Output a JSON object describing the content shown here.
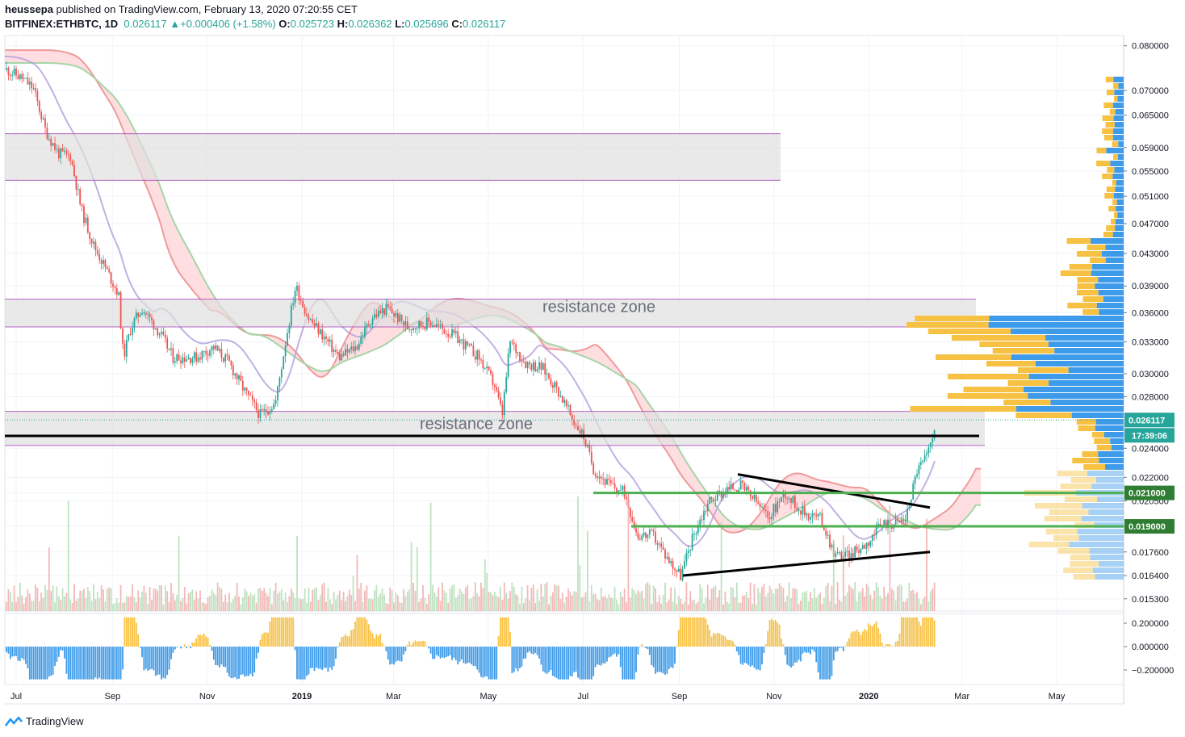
{
  "header": {
    "publisher": "heussepa",
    "published_text": "published on TradingView.com, February 13, 2020 07:20:55 CET",
    "symbol": "BITFINEX:ETHBTC, 1D",
    "last": "0.026117",
    "change": "+0.000406 (+1.58%)",
    "o_label": "O:",
    "o": "0.025723",
    "h_label": "H:",
    "h": "0.026362",
    "l_label": "L:",
    "l": "0.025696",
    "c_label": "C:",
    "c": "0.026117"
  },
  "footer": {
    "brand": "TradingView"
  },
  "colors": {
    "up": "#26a69a",
    "down": "#ef5350",
    "green_line": "#4caf50",
    "zone": "#e0e0e0",
    "zone_border": "#9c27b0",
    "vp_buy": "#f7c143",
    "vp_sell": "#3d9be9"
  },
  "chart_data": {
    "type": "candlestick",
    "symbol": "BITFINEX:ETHBTC",
    "interval": "1D",
    "x_ticks": [
      "Jul",
      "Sep",
      "Nov",
      "2019",
      "Mar",
      "May",
      "Jul",
      "Sep",
      "Nov",
      "2020",
      "Mar",
      "May"
    ],
    "y_ticks": [
      "0.080000",
      "0.070000",
      "0.065000",
      "0.059000",
      "0.055000",
      "0.051000",
      "0.047000",
      "0.043000",
      "0.039000",
      "0.036000",
      "0.033000",
      "0.030000",
      "0.028000",
      "0.026117",
      "0.024000",
      "0.022000",
      "0.021000",
      "0.020500",
      "0.019000",
      "0.017600",
      "0.016400",
      "0.015300"
    ],
    "osc_ticks": [
      "0.200000",
      "0.000000",
      "−0.200000"
    ],
    "price_label": "0.026117",
    "countdown_label": "17:39:06",
    "levels": [
      {
        "value": "0.021000"
      },
      {
        "value": "0.019000"
      }
    ],
    "annotations": [
      "resistance zone",
      "resistance zone"
    ],
    "close_path": [
      [
        "2018-06-25",
        0.0745
      ],
      [
        "2018-07-05",
        0.0725
      ],
      [
        "2018-07-12",
        0.0705
      ],
      [
        "2018-07-20",
        0.062
      ],
      [
        "2018-07-28",
        0.058
      ],
      [
        "2018-08-05",
        0.0575
      ],
      [
        "2018-08-12",
        0.049
      ],
      [
        "2018-08-20",
        0.044
      ],
      [
        "2018-08-28",
        0.041
      ],
      [
        "2018-09-05",
        0.038
      ],
      [
        "2018-09-08",
        0.0315
      ],
      [
        "2018-09-13",
        0.0345
      ],
      [
        "2018-09-20",
        0.0365
      ],
      [
        "2018-10-01",
        0.034
      ],
      [
        "2018-10-10",
        0.0315
      ],
      [
        "2018-10-25",
        0.0315
      ],
      [
        "2018-11-05",
        0.0325
      ],
      [
        "2018-11-15",
        0.031
      ],
      [
        "2018-11-25",
        0.0285
      ],
      [
        "2018-12-05",
        0.0265
      ],
      [
        "2018-12-15",
        0.0275
      ],
      [
        "2018-12-22",
        0.0335
      ],
      [
        "2018-12-28",
        0.039
      ],
      [
        "2019-01-05",
        0.0355
      ],
      [
        "2019-01-15",
        0.0335
      ],
      [
        "2019-01-25",
        0.0315
      ],
      [
        "2019-02-05",
        0.0325
      ],
      [
        "2019-02-15",
        0.0355
      ],
      [
        "2019-02-25",
        0.0365
      ],
      [
        "2019-03-10",
        0.0345
      ],
      [
        "2019-03-25",
        0.035
      ],
      [
        "2019-04-10",
        0.0335
      ],
      [
        "2019-04-25",
        0.0315
      ],
      [
        "2019-05-05",
        0.029
      ],
      [
        "2019-05-10",
        0.0265
      ],
      [
        "2019-05-15",
        0.033
      ],
      [
        "2019-05-25",
        0.031
      ],
      [
        "2019-06-05",
        0.0305
      ],
      [
        "2019-06-15",
        0.0285
      ],
      [
        "2019-06-25",
        0.026
      ],
      [
        "2019-07-01",
        0.025
      ],
      [
        "2019-07-08",
        0.0225
      ],
      [
        "2019-07-18",
        0.0215
      ],
      [
        "2019-07-28",
        0.021
      ],
      [
        "2019-08-05",
        0.0185
      ],
      [
        "2019-08-15",
        0.0185
      ],
      [
        "2019-08-25",
        0.0172
      ],
      [
        "2019-09-02",
        0.0164
      ],
      [
        "2019-09-10",
        0.0185
      ],
      [
        "2019-09-20",
        0.0205
      ],
      [
        "2019-10-01",
        0.0212
      ],
      [
        "2019-10-10",
        0.0215
      ],
      [
        "2019-10-20",
        0.0205
      ],
      [
        "2019-10-28",
        0.0195
      ],
      [
        "2019-11-08",
        0.021
      ],
      [
        "2019-11-20",
        0.0198
      ],
      [
        "2019-12-01",
        0.0195
      ],
      [
        "2019-12-10",
        0.0175
      ],
      [
        "2019-12-20",
        0.0174
      ],
      [
        "2020-01-01",
        0.0182
      ],
      [
        "2020-01-10",
        0.0192
      ],
      [
        "2020-01-20",
        0.0192
      ],
      [
        "2020-01-25",
        0.0195
      ],
      [
        "2020-02-01",
        0.0225
      ],
      [
        "2020-02-08",
        0.0235
      ],
      [
        "2020-02-13",
        0.026117
      ]
    ]
  }
}
